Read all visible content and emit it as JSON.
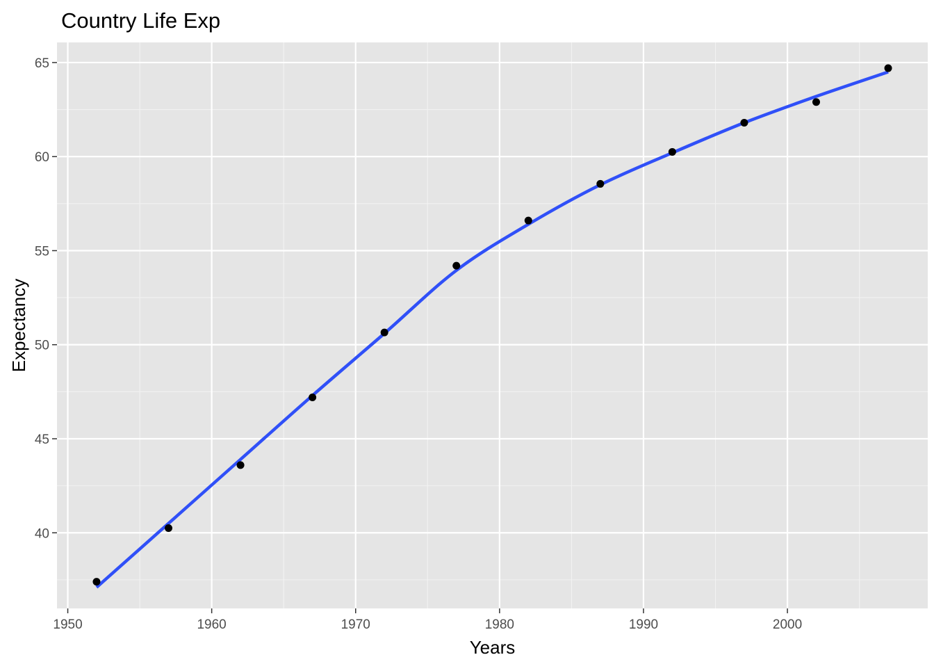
{
  "chart_data": {
    "type": "scatter",
    "title": "Country Life Exp",
    "xlabel": "Years",
    "ylabel": "Expectancy",
    "xlim": [
      1949.25,
      2009.75
    ],
    "ylim": [
      35.98,
      66.07
    ],
    "x_ticks": [
      1950,
      1960,
      1970,
      1980,
      1990,
      2000
    ],
    "y_ticks": [
      40,
      45,
      50,
      55,
      60,
      65
    ],
    "x_minor_ticks": [
      1955,
      1965,
      1975,
      1985,
      1995,
      2005
    ],
    "y_minor_ticks": [
      37.5,
      42.5,
      47.5,
      52.5,
      57.5,
      62.5
    ],
    "grid": true,
    "series": [
      {
        "type": "scatter",
        "x": [
          1952,
          1957,
          1962,
          1967,
          1972,
          1977,
          1982,
          1987,
          1992,
          1997,
          2002,
          2007
        ],
        "y": [
          37.4,
          40.25,
          43.6,
          47.2,
          50.65,
          54.2,
          56.6,
          58.55,
          60.25,
          61.8,
          62.9,
          64.7
        ]
      },
      {
        "type": "line",
        "smooth": true,
        "x": [
          1952,
          1957,
          1962,
          1967,
          1972,
          1977,
          1982,
          1987,
          1992,
          1997,
          2002,
          2007
        ],
        "y": [
          37.1,
          40.5,
          43.9,
          47.3,
          50.6,
          53.95,
          56.4,
          58.5,
          60.2,
          61.8,
          63.2,
          64.5
        ]
      }
    ],
    "colors": {
      "panel_background": "#E5E5E5",
      "grid_major": "#FFFFFF",
      "grid_minor": "#F2F2F2",
      "points": "#000000",
      "smooth_line": "#3050F8",
      "tick_text": "#4D4D4D",
      "axis_ticks": "#333333"
    }
  }
}
